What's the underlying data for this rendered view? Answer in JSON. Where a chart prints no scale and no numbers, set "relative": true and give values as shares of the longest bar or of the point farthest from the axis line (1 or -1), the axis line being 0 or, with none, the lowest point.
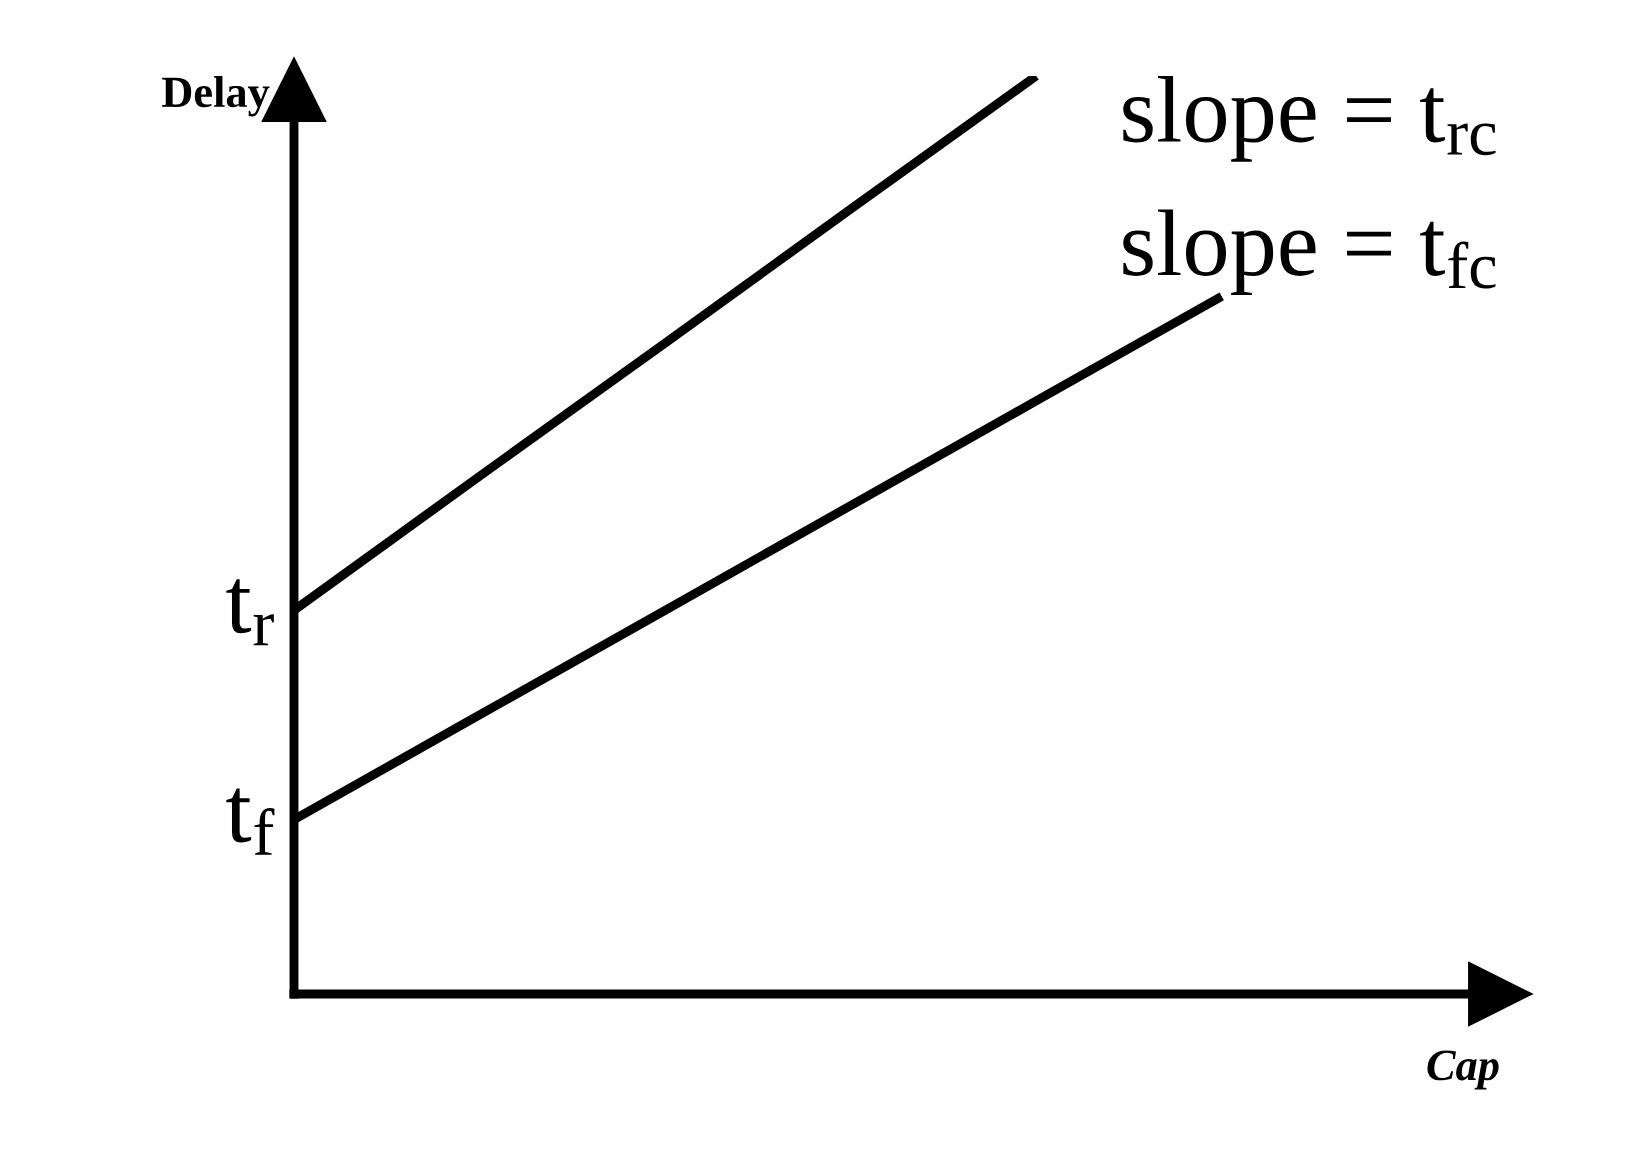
{
  "chart_data": {
    "type": "line",
    "relative": true,
    "xlabel": "Cap",
    "ylabel": "Delay",
    "categories": [
      null,
      null,
      null,
      null,
      null,
      null,
      null
    ],
    "tick_labels": false,
    "grid": false,
    "legend": false,
    "marker": "none",
    "line_style": "solid",
    "series": [
      {
        "color": "#000000",
        "values": [
          0.418,
          0.564,
          0.709,
          0.855,
          1.0,
          null,
          null
        ]
      },
      {
        "color": "#000000",
        "values": [
          0.19,
          0.304,
          0.418,
          0.532,
          0.646,
          0.76,
          null
        ]
      }
    ],
    "annotations": [
      "t$_{r}$",
      "t$_{f}$",
      "slope = t$_{rc}$",
      "slope = t$_{fc}$"
    ]
  }
}
